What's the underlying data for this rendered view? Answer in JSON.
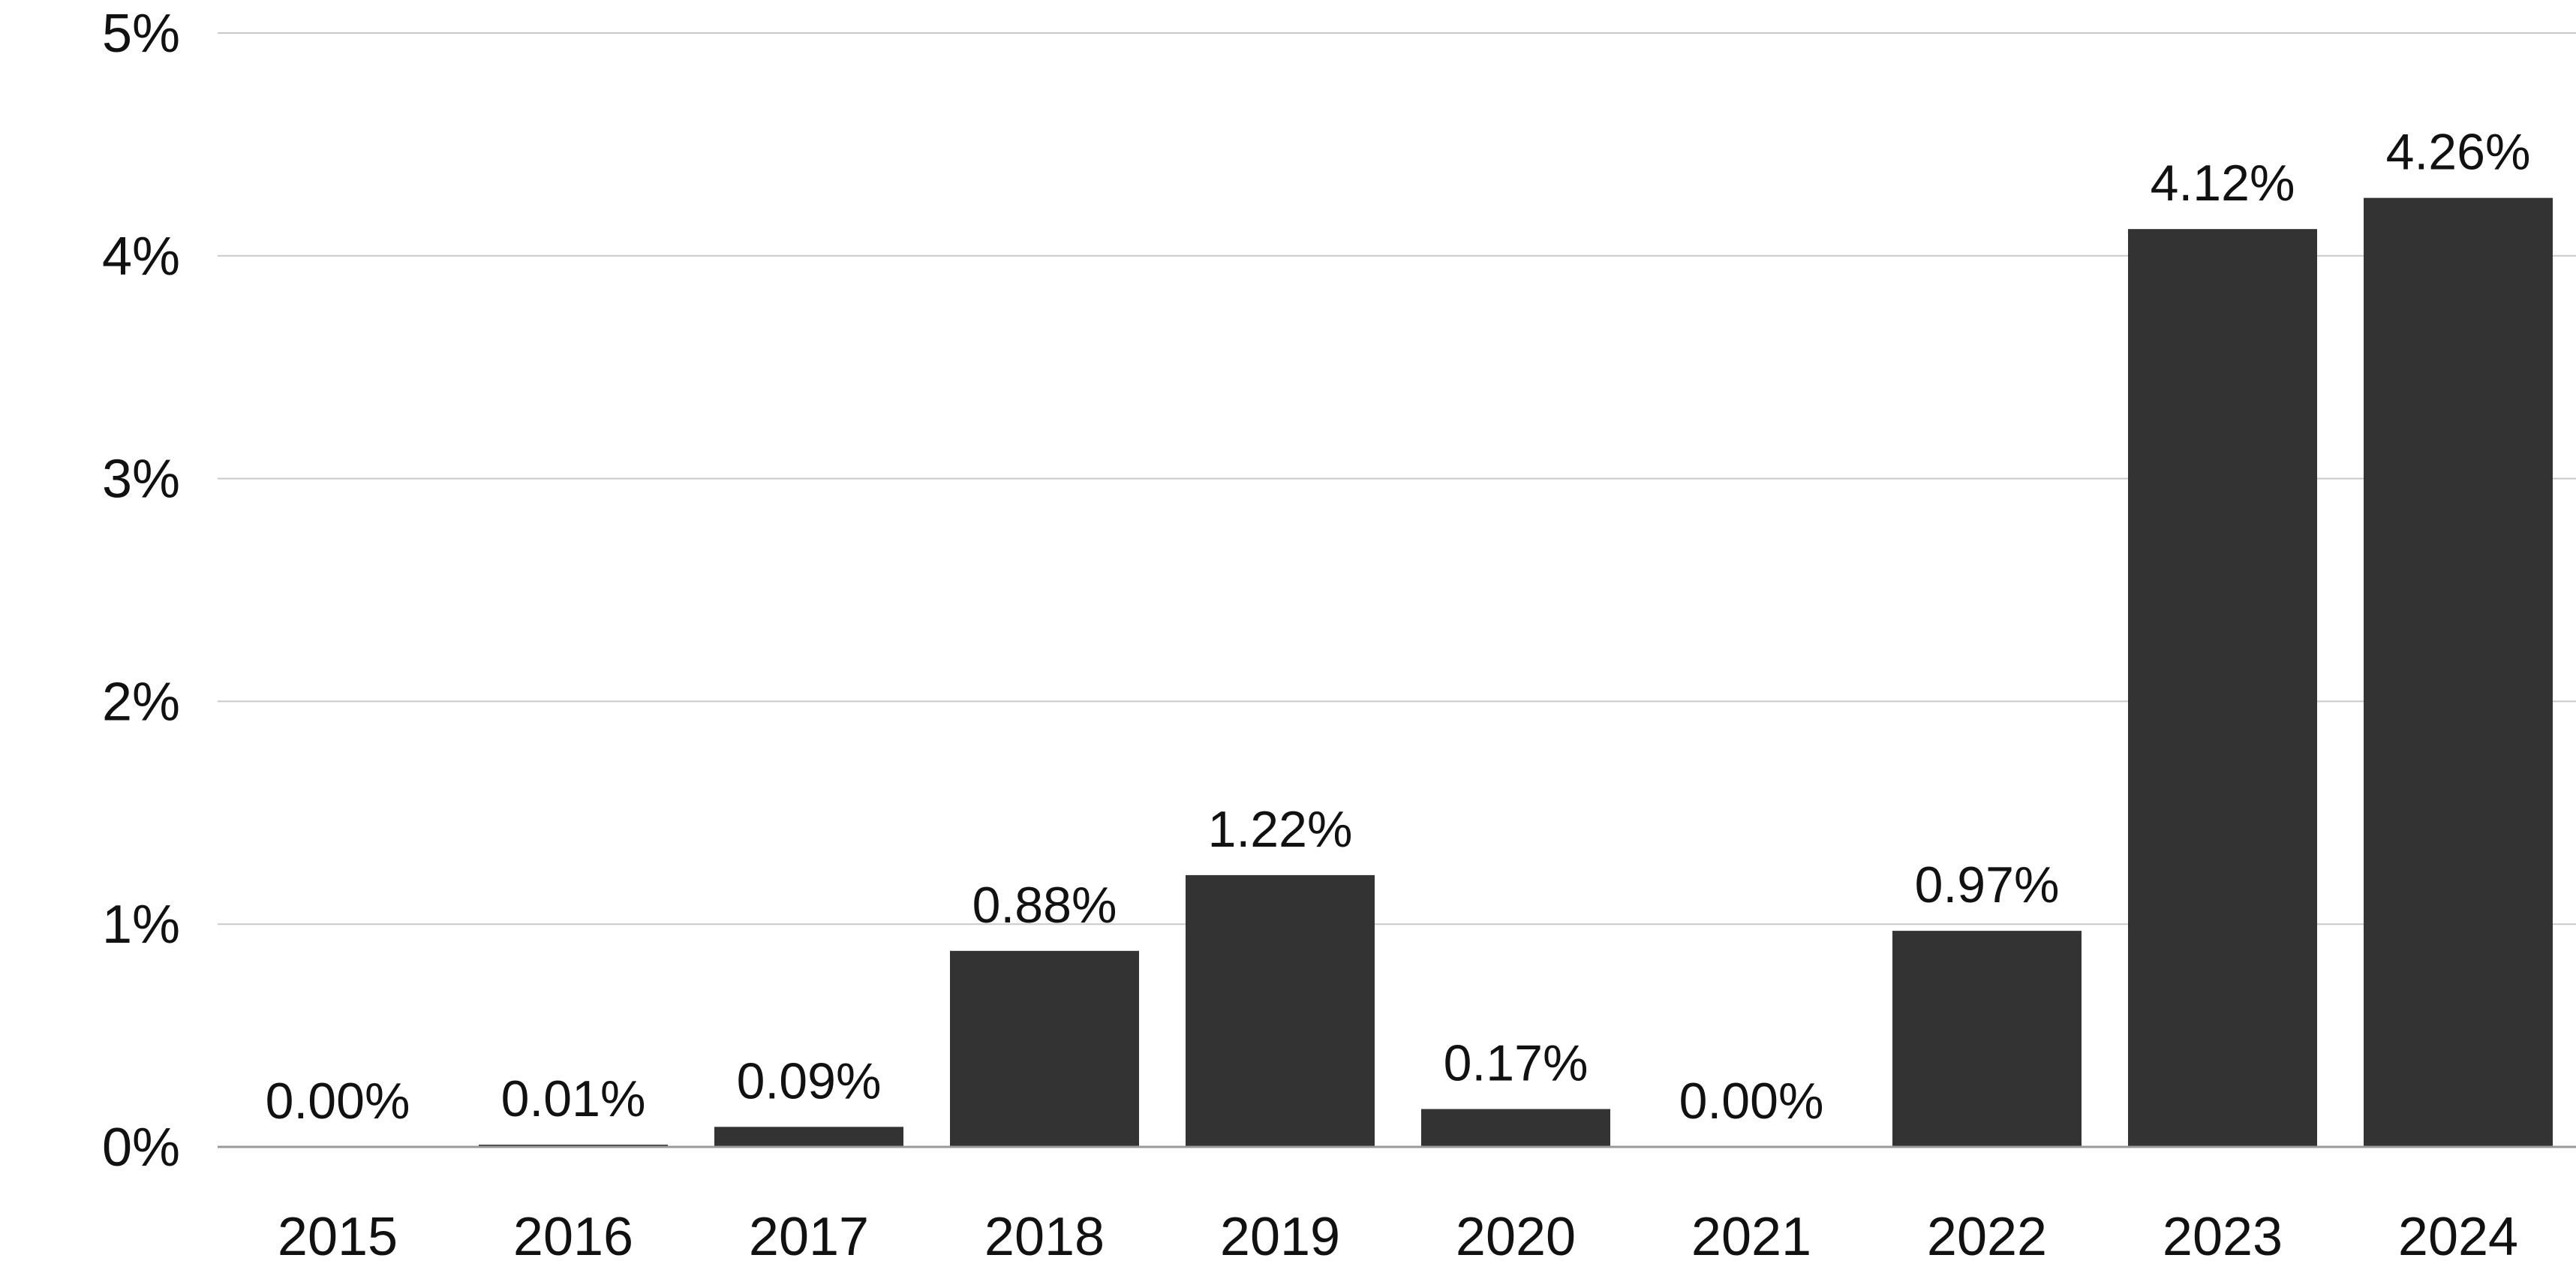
{
  "chart_data": {
    "type": "bar",
    "title": "",
    "xlabel": "",
    "ylabel": "",
    "categories": [
      "2015",
      "2016",
      "2017",
      "2018",
      "2019",
      "2020",
      "2021",
      "2022",
      "2023",
      "2024"
    ],
    "values": [
      0.0,
      0.01,
      0.09,
      0.88,
      1.22,
      0.17,
      0.0,
      0.97,
      4.12,
      4.26
    ],
    "data_labels": [
      "0.00%",
      "0.01%",
      "0.09%",
      "0.88%",
      "1.22%",
      "0.17%",
      "0.00%",
      "0.97%",
      "4.12%",
      "4.26%"
    ],
    "ylim": [
      0,
      5
    ],
    "yticks": [
      0,
      1,
      2,
      3,
      4,
      5
    ],
    "ytick_labels": [
      "0%",
      "1%",
      "2%",
      "3%",
      "4%",
      "5%"
    ],
    "grid": true,
    "legend": "none",
    "colors": {
      "bar": "#333333",
      "grid": "#c9c9c9",
      "baseline": "#9a9a9a",
      "text": "#111111"
    }
  }
}
